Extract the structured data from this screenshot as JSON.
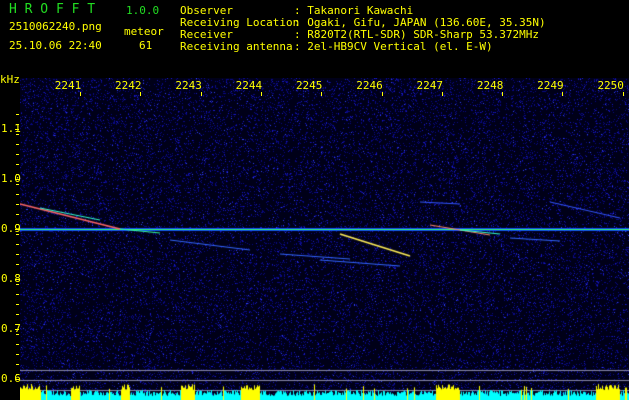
{
  "app": {
    "name": "H R O F F T",
    "version": "1.0.0"
  },
  "file": {
    "name": "2510062240.png",
    "datetime": "25.10.06 22:40"
  },
  "meteor": {
    "label": "meteor",
    "count": "61"
  },
  "info": [
    {
      "label": "Observer",
      "value": ": Takanori Kawachi"
    },
    {
      "label": "Receiving Location",
      "value": ": Ogaki, Gifu, JAPAN (136.60E, 35.35N)"
    },
    {
      "label": "Receiver",
      "value": ": R820T2(RTL-SDR) SDR-Sharp 53.372MHz"
    },
    {
      "label": "Receiving antenna",
      "value": ": 2el-HB9CV Vertical (el. E-W)"
    }
  ],
  "spectrogram": {
    "y_unit": "kHz",
    "y_ticks": [
      "1.1",
      "1.0",
      "0.9",
      "0.8",
      "0.7",
      "0.6"
    ],
    "x_ticks": [
      "2241",
      "2242",
      "2243",
      "2244",
      "2245",
      "2246",
      "2247",
      "2248",
      "2249",
      "2250"
    ],
    "carrier_khz": 0.9,
    "colors": {
      "text": "#ffff00",
      "title": "#22dd22",
      "noise": "#0000aa",
      "carrier": "#33ff66",
      "histogram_low": "#00ffff",
      "histogram_high": "#ffff00"
    }
  }
}
